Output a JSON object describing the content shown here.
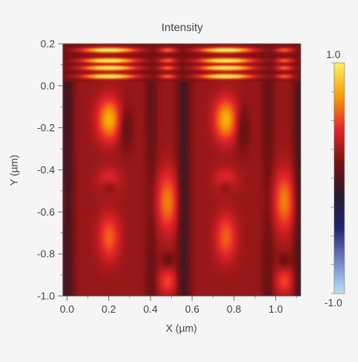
{
  "chart_data": {
    "type": "heatmap",
    "title": "Intensity",
    "xlabel": "X (µm)",
    "ylabel": "Y (µm)",
    "xlim": [
      -0.02,
      1.12
    ],
    "ylim": [
      -1.0,
      0.2
    ],
    "xticks": [
      0.0,
      0.2,
      0.4,
      0.6,
      0.8,
      1.0
    ],
    "xtick_labels": [
      "0.0",
      "0.2",
      "0.4",
      "0.6",
      "0.8",
      "1.0"
    ],
    "yticks": [
      0.2,
      0.0,
      -0.2,
      -0.4,
      -0.6,
      -0.8,
      -1.0
    ],
    "ytick_labels": [
      "0.2",
      "0.0",
      "-0.2",
      "-0.4",
      "-0.6",
      "-0.8",
      "-1.0"
    ],
    "colorbar": {
      "min": -1.0,
      "max": 1.0,
      "min_label": "-1.0",
      "max_label": "1.0",
      "colors": [
        "#b8e4f8",
        "#6f83c8",
        "#1e2470",
        "#2a1a2a",
        "#7a1212",
        "#e8252a",
        "#f5a000",
        "#fff060"
      ]
    },
    "grid": false,
    "period_x": 0.56,
    "features": {
      "bright_fringes_y": [
        0.17,
        0.12,
        0.085,
        0.045
      ],
      "bright_lobe_centers": [
        {
          "x": 0.2,
          "y": -0.2,
          "v": 0.72
        },
        {
          "x": 0.76,
          "y": -0.2,
          "v": 0.72
        },
        {
          "x": 0.48,
          "y": -0.55,
          "v": 0.55
        },
        {
          "x": 1.04,
          "y": -0.55,
          "v": 0.55
        },
        {
          "x": 0.2,
          "y": -0.72,
          "v": 0.45
        },
        {
          "x": 0.76,
          "y": -0.72,
          "v": 0.45
        }
      ]
    }
  }
}
